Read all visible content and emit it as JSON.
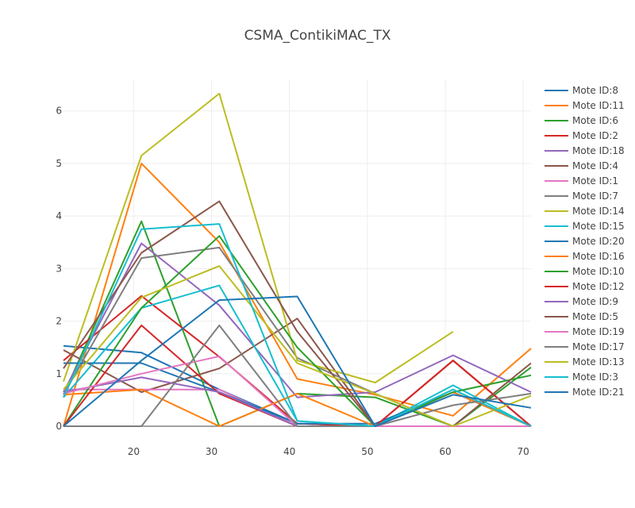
{
  "chart_data": {
    "type": "line",
    "title": "CSMA_ContikiMAC_TX",
    "xlabel": "",
    "ylabel": "",
    "xlim": [
      11,
      71
    ],
    "ylim": [
      0,
      6.6
    ],
    "x": [
      11,
      21,
      31,
      41,
      51,
      61,
      71
    ],
    "xticks": [
      20,
      30,
      40,
      50,
      60,
      70
    ],
    "yticks": [
      0,
      1,
      2,
      3,
      4,
      5,
      6
    ],
    "grid": true,
    "legend": "right",
    "series": [
      {
        "name": "Mote ID:8",
        "color": "#1f77b4",
        "values": [
          1.53,
          1.4,
          0.7,
          0.05,
          0.0,
          0.65,
          0.0
        ]
      },
      {
        "name": "Mote ID:11",
        "color": "#ff7f0e",
        "values": [
          0.0,
          5.0,
          3.5,
          0.9,
          0.6,
          0.2,
          1.48
        ]
      },
      {
        "name": "Mote ID:6",
        "color": "#2ca02c",
        "values": [
          0.6,
          3.9,
          0.0,
          0.62,
          0.55,
          0.0,
          1.12
        ]
      },
      {
        "name": "Mote ID:2",
        "color": "#d62728",
        "values": [
          1.25,
          2.48,
          1.32,
          0.05,
          0.0,
          1.25,
          0.0
        ]
      },
      {
        "name": "Mote ID:18",
        "color": "#9467bd",
        "values": [
          0.65,
          3.48,
          2.3,
          0.55,
          0.65,
          1.35,
          0.65
        ]
      },
      {
        "name": "Mote ID:4",
        "color": "#8c564b",
        "values": [
          1.45,
          0.65,
          1.1,
          2.05,
          0.0,
          1.25,
          0.0
        ]
      },
      {
        "name": "Mote ID:1",
        "color": "#e377c2",
        "values": [
          0.7,
          0.7,
          0.7,
          0.0,
          0.0,
          0.0,
          0.0
        ]
      },
      {
        "name": "Mote ID:7",
        "color": "#7f7f7f",
        "values": [
          0.6,
          3.2,
          3.4,
          1.3,
          0.62,
          0.0,
          0.0
        ]
      },
      {
        "name": "Mote ID:14",
        "color": "#bcbd22",
        "values": [
          0.85,
          5.15,
          6.33,
          1.25,
          0.83,
          1.8,
          null
        ]
      },
      {
        "name": "Mote ID:15",
        "color": "#17becf",
        "values": [
          0.55,
          2.25,
          2.68,
          0.1,
          0.0,
          0.78,
          0.0
        ]
      },
      {
        "name": "Mote ID:20",
        "color": "#1f77b4",
        "values": [
          1.2,
          1.2,
          0.65,
          0.05,
          0.05,
          0.65,
          0.0
        ]
      },
      {
        "name": "Mote ID:16",
        "color": "#ff7f0e",
        "values": [
          0.6,
          0.7,
          0.0,
          0.62,
          0.0,
          0.65,
          0.0
        ]
      },
      {
        "name": "Mote ID:10",
        "color": "#2ca02c",
        "values": [
          0.0,
          2.25,
          3.62,
          1.5,
          0.0,
          0.65,
          0.97
        ]
      },
      {
        "name": "Mote ID:12",
        "color": "#d62728",
        "values": [
          0.0,
          1.92,
          0.62,
          0.0,
          0.0,
          1.25,
          0.0
        ]
      },
      {
        "name": "Mote ID:9",
        "color": "#9467bd",
        "values": [
          0.65,
          0.93,
          0.65,
          0.0,
          0.0,
          0.0,
          0.0
        ]
      },
      {
        "name": "Mote ID:5",
        "color": "#8c564b",
        "values": [
          1.1,
          3.3,
          4.28,
          1.8,
          0.0,
          0.0,
          1.2
        ]
      },
      {
        "name": "Mote ID:19",
        "color": "#e377c2",
        "values": [
          0.62,
          1.0,
          1.33,
          0.0,
          0.0,
          0.0,
          0.0
        ]
      },
      {
        "name": "Mote ID:17",
        "color": "#7f7f7f",
        "values": [
          0.0,
          0.0,
          1.92,
          0.0,
          0.0,
          0.4,
          0.62
        ]
      },
      {
        "name": "Mote ID:13",
        "color": "#bcbd22",
        "values": [
          0.7,
          2.45,
          3.05,
          1.2,
          0.62,
          0.0,
          0.58
        ]
      },
      {
        "name": "Mote ID:3",
        "color": "#17becf",
        "values": [
          0.55,
          3.75,
          3.85,
          0.1,
          0.0,
          0.7,
          0.0
        ]
      },
      {
        "name": "Mote ID:21",
        "color": "#1f77b4",
        "values": [
          0.0,
          1.25,
          2.4,
          2.47,
          0.0,
          0.6,
          0.35
        ]
      }
    ]
  }
}
